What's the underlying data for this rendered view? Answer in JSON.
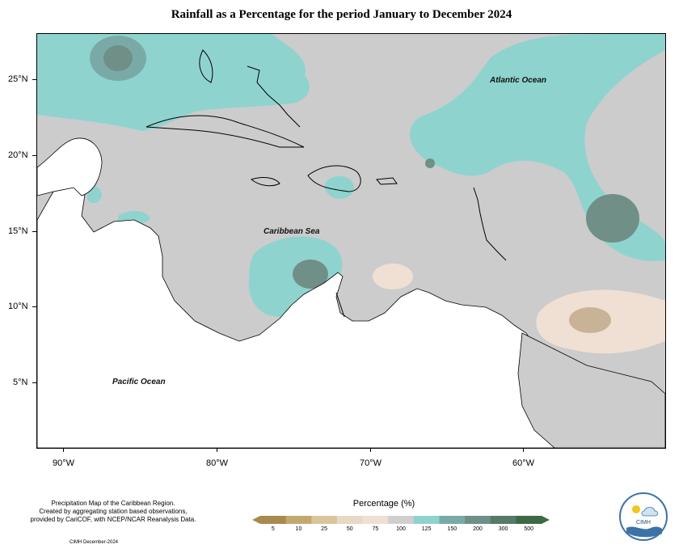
{
  "title": "Rainfall as a Percentage for the period January to December 2024",
  "axes": {
    "y_ticks": [
      "25°N",
      "20°N",
      "15°N",
      "10°N",
      "5°N"
    ],
    "x_ticks": [
      "90°W",
      "80°W",
      "70°W",
      "60°W"
    ]
  },
  "labels": {
    "atlantic": "Atlantic Ocean",
    "caribbean": "Caribbean Sea",
    "pacific": "Pacific Ocean"
  },
  "footnote": {
    "line1": "Precipitation Map of the Caribbean Region.",
    "line2": "Created by aggregating station based observations,",
    "line3": "provided by CariCOF, with NCEP/NCAR Reanalysis Data.",
    "credit": "CIMH December-2024"
  },
  "legend": {
    "title": "Percentage (%)",
    "ticks": [
      "5",
      "10",
      "25",
      "50",
      "75",
      "100",
      "125",
      "150",
      "200",
      "300",
      "500"
    ],
    "colors": [
      "#a88a4e",
      "#c2a86d",
      "#d8c59c",
      "#e8d8c6",
      "#efe0d3",
      "#cfcfcf",
      "#8fd3cf",
      "#7aaaa8",
      "#6f8f87",
      "#577a66",
      "#3d6a45"
    ]
  },
  "logo": {
    "text": "CIMH"
  },
  "colors": {
    "normal": "#cccccc",
    "wet": "#8fd3cf",
    "very_wet": "#6f8f87",
    "dry": "#efe0d3",
    "very_dry": "#c9b397",
    "land": "#ffffff"
  }
}
